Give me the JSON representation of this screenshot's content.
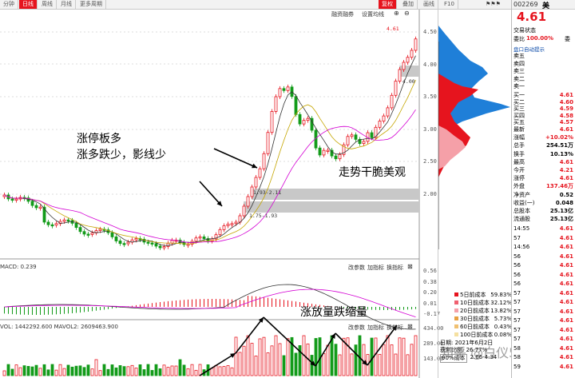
{
  "top_tabs": [
    {
      "label": "分钟",
      "active": false
    },
    {
      "label": "日线",
      "active": true
    },
    {
      "label": "周线",
      "active": false
    },
    {
      "label": "月线",
      "active": false
    },
    {
      "label": "更多周期",
      "active": false
    }
  ],
  "top_right_tabs": [
    {
      "label": "复权",
      "active": true
    },
    {
      "label": "叠加",
      "active": false
    },
    {
      "label": "画线",
      "active": false
    },
    {
      "label": "F10",
      "active": false
    }
  ],
  "chart_toolbar": {
    "margin_trading": "融资融券",
    "set_price_line": "设置均线"
  },
  "price_axis": [
    "4.50",
    "4.00",
    "3.50",
    "3.00",
    "2.50",
    "2.00"
  ],
  "price_high_label": "4.61",
  "price_level_label": "4.00",
  "gap_labels": [
    "1.93-2.11",
    "1.75-1.93"
  ],
  "macd": {
    "header": "MACD: 0.239",
    "buttons": [
      "改参数",
      "加指标",
      "换指标"
    ],
    "axis": [
      "0.56",
      "0.38",
      "0.20",
      "0.01",
      "-0.17"
    ]
  },
  "volume": {
    "header": "VOL: 1442292.600  MAVOL2: 2609463.900",
    "buttons": [
      "改参数",
      "加指标",
      "换指标"
    ],
    "axis": [
      "434.00",
      "289.00",
      "143.00"
    ]
  },
  "annotations": {
    "limit_up": "涨停板多",
    "rise_more": "涨多跌少，影线少",
    "trend": "走势干脆美观",
    "volume_note": "涨放量跌缩量"
  },
  "chip_legend": [
    {
      "label": "5日前成本",
      "value": "59.83%",
      "color": "#e6141e"
    },
    {
      "label": "10日前成本",
      "value": "32.12%",
      "color": "#f06070"
    },
    {
      "label": "20日前成本",
      "value": "13.82%",
      "color": "#f5a0a8"
    },
    {
      "label": "30日前成本",
      "value": "5.73%",
      "color": "#e8a040"
    },
    {
      "label": "60日前成本",
      "value": "0.43%",
      "color": "#f0c070"
    },
    {
      "label": "100日前成本",
      "value": "0.08%",
      "color": "#f5e0a0"
    }
  ],
  "chip_info": {
    "date": "日期: 2021年6月2日",
    "profit": "获利比例: 26.77%",
    "cost": "90%成本",
    "cost_range": "2.66-4.34"
  },
  "watermark": "知乎 @白仪520",
  "right_panel": {
    "code": "002269",
    "name": "美",
    "price": "4.61",
    "trade_status": "交易状态",
    "ratio_label": "委比",
    "ratio_value": "100.00%",
    "ratio_extra": "委",
    "book_alert": "盘口自动提示",
    "sells": [
      {
        "label": "卖五",
        "value": ""
      },
      {
        "label": "卖四",
        "value": ""
      },
      {
        "label": "卖三",
        "value": ""
      },
      {
        "label": "卖二",
        "value": ""
      },
      {
        "label": "卖一",
        "value": ""
      }
    ],
    "buys": [
      {
        "label": "买一",
        "value": "4.61"
      },
      {
        "label": "买二",
        "value": "4.60"
      },
      {
        "label": "买三",
        "value": "4.59"
      },
      {
        "label": "买四",
        "value": "4.58"
      },
      {
        "label": "买五",
        "value": "4.57"
      }
    ],
    "stats": [
      {
        "label": "最新",
        "value": "4.61",
        "color": "red"
      },
      {
        "label": "涨幅",
        "value": "+10.02%",
        "color": "red"
      },
      {
        "label": "总手",
        "value": "254.51万",
        "color": "black"
      },
      {
        "label": "换手",
        "value": "10.13%",
        "color": "black"
      },
      {
        "label": "最高",
        "value": "4.61",
        "color": "red"
      },
      {
        "label": "今开",
        "value": "4.21",
        "color": "red"
      },
      {
        "label": "涨停",
        "value": "4.61",
        "color": "red"
      },
      {
        "label": "外盘",
        "value": "137.46万",
        "color": "red"
      },
      {
        "label": "净资产",
        "value": "0.52",
        "color": "black"
      },
      {
        "label": "收益(一)",
        "value": "0.048",
        "color": "black"
      },
      {
        "label": "总股本",
        "value": "25.13亿",
        "color": "black"
      },
      {
        "label": "流通股",
        "value": "25.13亿",
        "color": "black"
      }
    ],
    "ticks": [
      {
        "time": "14:55",
        "price": "4.61"
      },
      {
        "time": "57",
        "price": "4.61"
      },
      {
        "time": "14:56",
        "price": "4.61"
      },
      {
        "time": "56",
        "price": "4.61"
      },
      {
        "time": "56",
        "price": "4.61"
      },
      {
        "time": "56",
        "price": "4.61"
      },
      {
        "time": "56",
        "price": "4.61"
      },
      {
        "time": "57",
        "price": "4.61"
      },
      {
        "time": "57",
        "price": "4.61"
      },
      {
        "time": "57",
        "price": "4.61"
      },
      {
        "time": "57",
        "price": "4.61"
      },
      {
        "time": "57",
        "price": "4.61"
      },
      {
        "time": "57",
        "price": "4.61"
      },
      {
        "time": "58",
        "price": "4.61"
      },
      {
        "time": "58",
        "price": "4.61"
      },
      {
        "time": "59",
        "price": "4.61"
      }
    ]
  },
  "colors": {
    "up": "#e6141e",
    "down": "#139b1a",
    "accent_blue": "#0b4aa8"
  }
}
